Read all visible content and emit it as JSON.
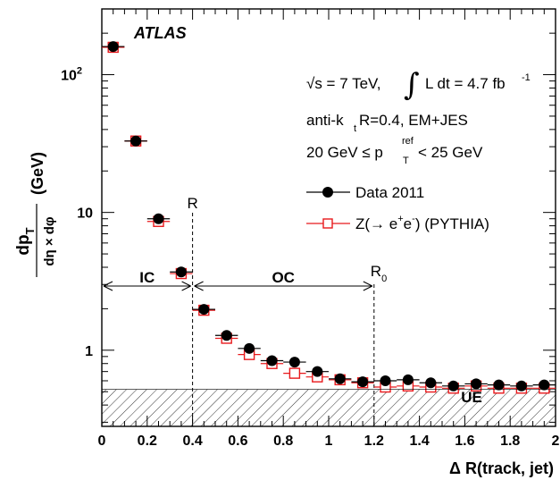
{
  "chart_data": {
    "type": "scatter",
    "experiment_label": "ATLAS",
    "ylabel": {
      "numerator": "dp",
      "numerator_sub": "T",
      "denominator": "dη × dφ",
      "unit": "(GeV)"
    },
    "xlabel": "Δ R(track, jet)",
    "xlim": [
      0,
      2
    ],
    "ylim": [
      0.28,
      300
    ],
    "y_scale": "log",
    "x_ticks": [
      "0",
      "0.2",
      "0.4",
      "0.6",
      "0.8",
      "1",
      "1.2",
      "1.4",
      "1.6",
      "1.8",
      "2"
    ],
    "x_tick_values": [
      0,
      0.2,
      0.4,
      0.6,
      0.8,
      1.0,
      1.2,
      1.4,
      1.6,
      1.8,
      2.0
    ],
    "y_ticks": [
      {
        "value": 1,
        "label": "1"
      },
      {
        "value": 10,
        "label": "10"
      },
      {
        "value": 100,
        "label": "10",
        "sup": "2"
      }
    ],
    "annotations": {
      "energy": "√s = 7 TeV,",
      "lumi_text": "L dt = 4.7 fb",
      "lumi_sup": "-1",
      "algo_a": "anti-k",
      "algo_sub": "t",
      "algo_b": " R=0.4, EM+JES",
      "pt_a": "20 GeV ≤ p",
      "pt_sup": "ref",
      "pt_sub": "T",
      "pt_b": " < 25 GeV",
      "R": "R",
      "R0": "R",
      "R0_sub": "0",
      "IC": "IC",
      "OC": "OC",
      "UE": "UE"
    },
    "R_position": 0.4,
    "R0_position": 1.2,
    "ue_level": 0.52,
    "x_bin_half_width": 0.05,
    "legend_position": "right",
    "series": [
      {
        "name": "Data 2011",
        "marker": "filled-circle",
        "color": "#000000",
        "x": [
          0.05,
          0.15,
          0.25,
          0.35,
          0.45,
          0.55,
          0.65,
          0.75,
          0.85,
          0.95,
          1.05,
          1.15,
          1.25,
          1.35,
          1.45,
          1.55,
          1.65,
          1.75,
          1.85,
          1.95
        ],
        "y": [
          160,
          33,
          9.0,
          3.7,
          1.98,
          1.28,
          1.03,
          0.84,
          0.82,
          0.7,
          0.62,
          0.59,
          0.6,
          0.61,
          0.58,
          0.55,
          0.57,
          0.56,
          0.55,
          0.56
        ]
      },
      {
        "name": "Z(→ e⁺e⁻) (PYTHIA)",
        "legend_a": "Z(→ e",
        "legend_sup1": "+",
        "legend_b": "e",
        "legend_sup2": "-",
        "legend_c": ") (PYTHIA)",
        "marker": "open-square",
        "color": "#e8191c",
        "x": [
          0.05,
          0.15,
          0.25,
          0.35,
          0.45,
          0.55,
          0.65,
          0.75,
          0.85,
          0.95,
          1.05,
          1.15,
          1.25,
          1.35,
          1.45,
          1.55,
          1.65,
          1.75,
          1.85,
          1.95
        ],
        "y": [
          158,
          33,
          8.6,
          3.6,
          1.95,
          1.22,
          0.93,
          0.8,
          0.68,
          0.64,
          0.61,
          0.58,
          0.54,
          0.55,
          0.54,
          0.53,
          0.55,
          0.53,
          0.53,
          0.53
        ]
      }
    ]
  }
}
